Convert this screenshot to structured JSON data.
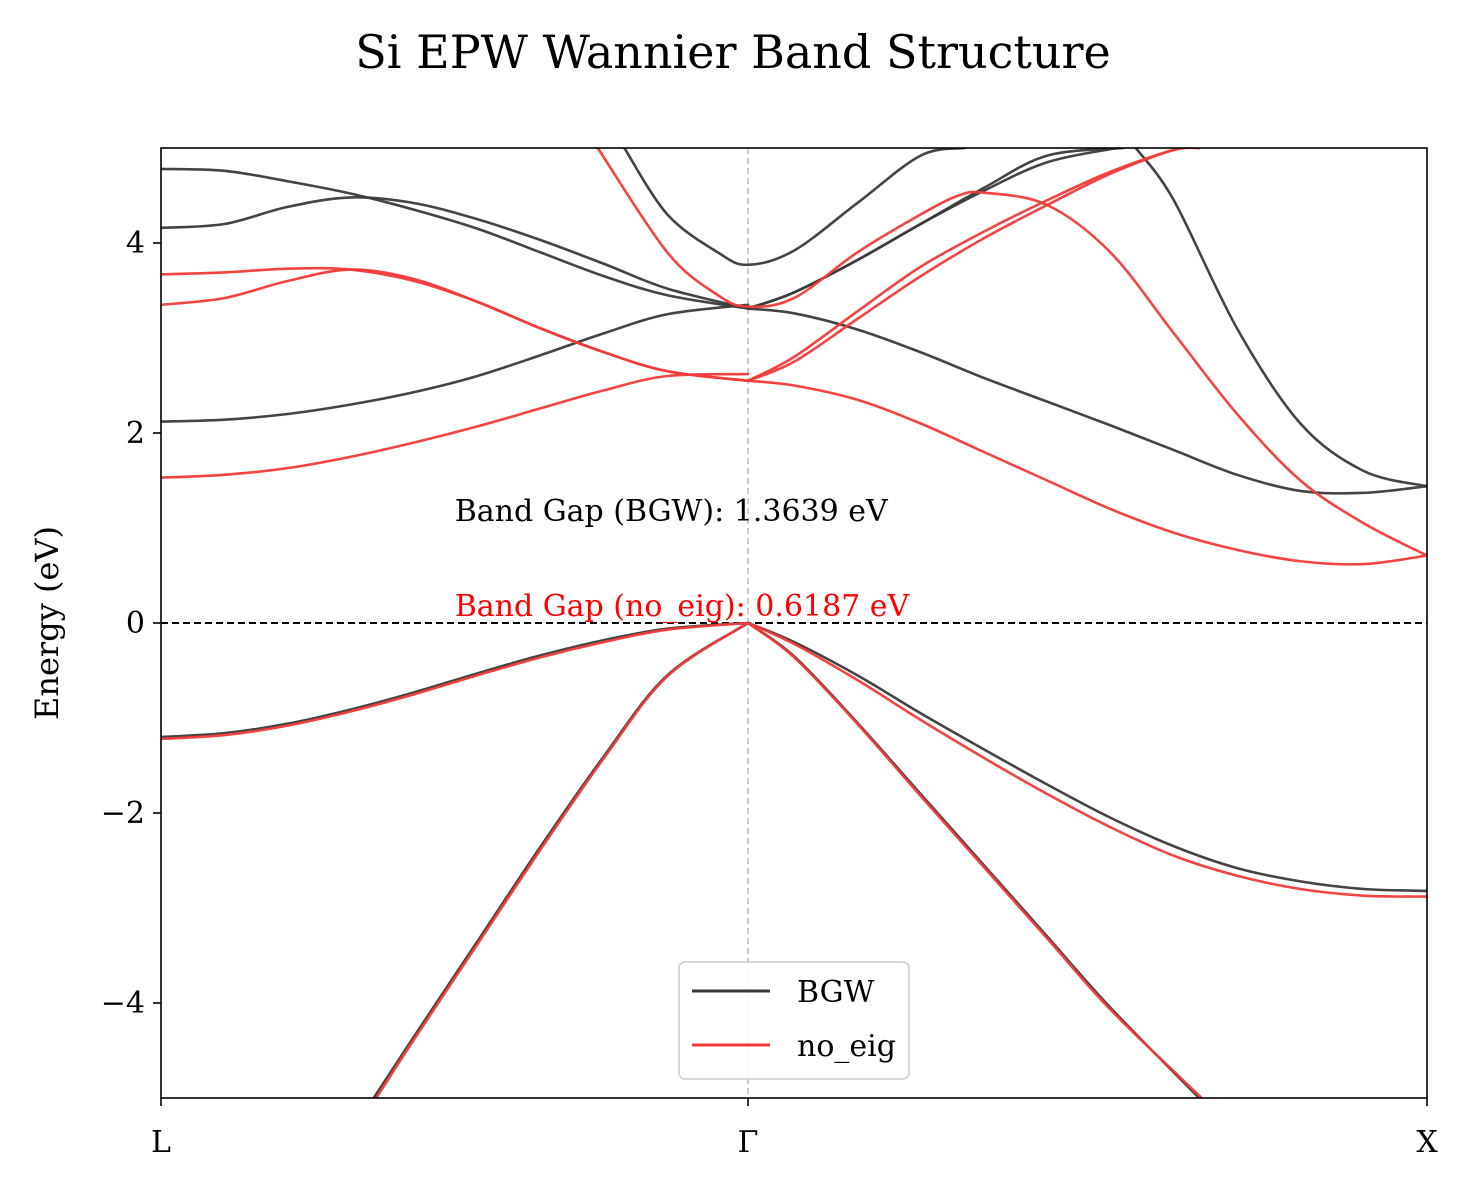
{
  "chart_data": {
    "type": "line",
    "title": "Si EPW Wannier Band Structure",
    "xlabel": "",
    "ylabel": "Energy (eV)",
    "ylim": [
      -5,
      5
    ],
    "xlim": [
      0,
      1
    ],
    "x_ticks": [
      {
        "label": "L",
        "value": 0.0
      },
      {
        "label": "Γ",
        "value": 0.4637
      },
      {
        "label": "X",
        "value": 1.0
      }
    ],
    "y_ticks": [
      -4,
      -2,
      0,
      2,
      4
    ],
    "y_tick_labels": [
      "−4",
      "−2",
      "0",
      "2",
      "4"
    ],
    "gridlines": {
      "vertical_at_gamma": true,
      "fermi_level_dashed": 0
    },
    "legend": {
      "placement": "lower-center",
      "entries": [
        {
          "name": "BGW",
          "color": "#3a3a3a"
        },
        {
          "name": "no_eig",
          "color": "#f23a3a"
        }
      ]
    },
    "annotations": [
      {
        "text": "Band Gap (BGW):  1.3639 eV",
        "x": 0.232,
        "y": 1.2,
        "color": "#000000"
      },
      {
        "text": "Band Gap (no_eig):  0.6187 eV",
        "x": 0.232,
        "y": 0.2,
        "color": "#ff0000"
      }
    ],
    "series": [
      {
        "name": "BGW",
        "color": "#3a3a3a",
        "bands": [
          {
            "x": [
              0,
              0.05,
              0.1,
              0.15,
              0.2,
              0.25,
              0.3,
              0.35,
              0.4,
              0.4637
            ],
            "y": [
              -1.2,
              -1.16,
              -1.06,
              -0.91,
              -0.73,
              -0.53,
              -0.34,
              -0.18,
              -0.06,
              0
            ]
          },
          {
            "x": [
              0.4637,
              0.5,
              0.55,
              0.6,
              0.65,
              0.7,
              0.75,
              0.8,
              0.85,
              0.9,
              0.95,
              1.0
            ],
            "y": [
              0,
              -0.2,
              -0.55,
              -0.95,
              -1.33,
              -1.7,
              -2.05,
              -2.35,
              -2.58,
              -2.72,
              -2.8,
              -2.82
            ]
          },
          {
            "x": [
              0.168,
              0.2,
              0.25,
              0.3,
              0.35,
              0.4,
              0.4637
            ],
            "y": [
              -5,
              -4.35,
              -3.35,
              -2.35,
              -1.4,
              -0.55,
              0
            ]
          },
          {
            "x": [
              0.4637,
              0.5,
              0.55,
              0.6,
              0.65,
              0.7,
              0.75,
              0.82
            ],
            "y": [
              0,
              -0.35,
              -1.05,
              -1.8,
              -2.55,
              -3.3,
              -4.05,
              -5
            ]
          },
          {
            "x": [
              0,
              0.05,
              0.1,
              0.15,
              0.2,
              0.25,
              0.3,
              0.35,
              0.4,
              0.4637
            ],
            "y": [
              2.12,
              2.14,
              2.2,
              2.3,
              2.43,
              2.6,
              2.82,
              3.05,
              3.25,
              3.35
            ]
          },
          {
            "x": [
              0.4637,
              0.5,
              0.55,
              0.6,
              0.65,
              0.7,
              0.75,
              0.8,
              0.85,
              0.9,
              0.95,
              1.0
            ],
            "y": [
              3.31,
              3.26,
              3.09,
              2.85,
              2.58,
              2.33,
              2.08,
              1.82,
              1.56,
              1.39,
              1.37,
              1.44
            ]
          },
          {
            "x": [
              0,
              0.05,
              0.1,
              0.15,
              0.2,
              0.25,
              0.3,
              0.35,
              0.4,
              0.4637
            ],
            "y": [
              4.16,
              4.2,
              4.38,
              4.48,
              4.42,
              4.25,
              4.03,
              3.78,
              3.52,
              3.31
            ]
          },
          {
            "x": [
              0,
              0.05,
              0.1,
              0.15,
              0.2,
              0.25,
              0.3,
              0.35,
              0.4,
              0.4637
            ],
            "y": [
              4.78,
              4.76,
              4.65,
              4.52,
              4.35,
              4.15,
              3.9,
              3.65,
              3.45,
              3.31
            ]
          },
          {
            "x": [
              0.4637,
              0.5,
              0.55,
              0.6,
              0.65,
              0.7,
              0.755
            ],
            "y": [
              3.31,
              3.48,
              3.82,
              4.2,
              4.55,
              4.85,
              5
            ]
          },
          {
            "x": [
              0.4637,
              0.5,
              0.55,
              0.6,
              0.65,
              0.7,
              0.76
            ],
            "y": [
              3.31,
              3.48,
              3.82,
              4.2,
              4.58,
              4.92,
              5
            ]
          },
          {
            "x": [
              0.366,
              0.4,
              0.44,
              0.4637,
              0.5,
              0.55,
              0.6,
              0.635
            ],
            "y": [
              5,
              4.3,
              3.9,
              3.77,
              3.92,
              4.42,
              4.92,
              5
            ]
          },
          {
            "x": [
              0.77,
              0.8,
              0.85,
              0.9,
              0.95,
              1.0
            ],
            "y": [
              5,
              4.45,
              3.1,
              2.1,
              1.6,
              1.44
            ]
          }
        ]
      },
      {
        "name": "no_eig",
        "color": "#f23a3a",
        "bands": [
          {
            "x": [
              0,
              0.05,
              0.1,
              0.15,
              0.2,
              0.25,
              0.3,
              0.35,
              0.4,
              0.4637
            ],
            "y": [
              -1.22,
              -1.18,
              -1.08,
              -0.93,
              -0.75,
              -0.55,
              -0.36,
              -0.2,
              -0.07,
              0
            ]
          },
          {
            "x": [
              0.4637,
              0.5,
              0.55,
              0.6,
              0.65,
              0.7,
              0.75,
              0.8,
              0.85,
              0.9,
              0.95,
              1.0
            ],
            "y": [
              0,
              -0.22,
              -0.6,
              -1.02,
              -1.42,
              -1.8,
              -2.15,
              -2.45,
              -2.66,
              -2.8,
              -2.87,
              -2.88
            ]
          },
          {
            "x": [
              0.17,
              0.2,
              0.25,
              0.3,
              0.35,
              0.4,
              0.4637
            ],
            "y": [
              -5,
              -4.38,
              -3.38,
              -2.38,
              -1.42,
              -0.56,
              0
            ]
          },
          {
            "x": [
              0.4637,
              0.5,
              0.55,
              0.6,
              0.65,
              0.7,
              0.75,
              0.822
            ],
            "y": [
              0,
              -0.36,
              -1.06,
              -1.82,
              -2.57,
              -3.32,
              -4.07,
              -5
            ]
          },
          {
            "x": [
              0,
              0.05,
              0.1,
              0.15,
              0.2,
              0.25,
              0.3,
              0.35,
              0.4,
              0.4637
            ],
            "y": [
              1.53,
              1.56,
              1.63,
              1.75,
              1.9,
              2.07,
              2.26,
              2.45,
              2.6,
              2.62
            ]
          },
          {
            "x": [
              0.4637,
              0.5,
              0.55,
              0.6,
              0.65,
              0.7,
              0.75,
              0.8,
              0.85,
              0.9,
              0.95,
              1.0
            ],
            "y": [
              2.55,
              2.5,
              2.35,
              2.1,
              1.8,
              1.5,
              1.2,
              0.95,
              0.77,
              0.65,
              0.62,
              0.71
            ]
          },
          {
            "x": [
              0,
              0.05,
              0.1,
              0.15,
              0.2,
              0.25,
              0.3,
              0.35,
              0.4,
              0.4637
            ],
            "y": [
              3.35,
              3.42,
              3.6,
              3.72,
              3.62,
              3.38,
              3.1,
              2.85,
              2.65,
              2.55
            ]
          },
          {
            "x": [
              0,
              0.05,
              0.1,
              0.15,
              0.2,
              0.25,
              0.3,
              0.35,
              0.4,
              0.4637
            ],
            "y": [
              3.67,
              3.69,
              3.73,
              3.72,
              3.6,
              3.38,
              3.1,
              2.85,
              2.65,
              2.55
            ]
          },
          {
            "x": [
              0.4637,
              0.5,
              0.55,
              0.6,
              0.65,
              0.7,
              0.75,
              0.8,
              0.82
            ],
            "y": [
              2.55,
              2.75,
              3.2,
              3.65,
              4.05,
              4.4,
              4.73,
              4.98,
              5
            ]
          },
          {
            "x": [
              0.4637,
              0.5,
              0.55,
              0.6,
              0.65,
              0.7,
              0.75,
              0.8,
              0.82
            ],
            "y": [
              2.55,
              2.8,
              3.28,
              3.75,
              4.12,
              4.45,
              4.75,
              4.98,
              5
            ]
          },
          {
            "x": [
              0.345,
              0.4,
              0.44,
              0.4637,
              0.5,
              0.55,
              0.6,
              0.63,
              0.65,
              0.7,
              0.75,
              0.8,
              0.85,
              0.9,
              0.95,
              1.0
            ],
            "y": [
              5,
              3.9,
              3.45,
              3.33,
              3.42,
              3.9,
              4.3,
              4.5,
              4.53,
              4.4,
              3.9,
              3.05,
              2.2,
              1.5,
              1.05,
              0.71
            ]
          }
        ]
      }
    ]
  }
}
